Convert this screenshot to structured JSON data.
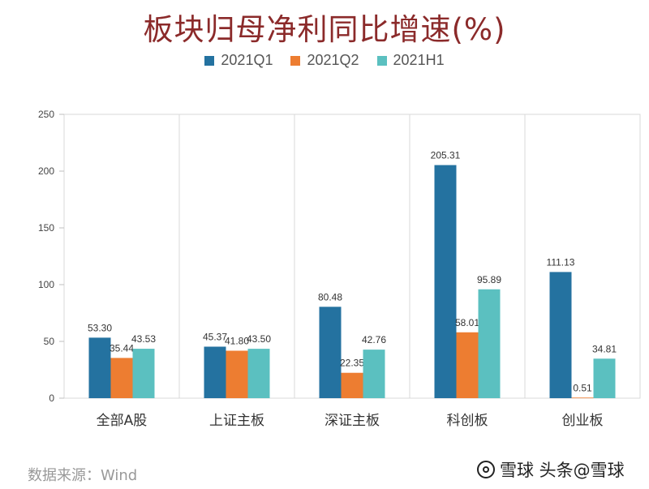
{
  "chart_data": {
    "type": "bar",
    "title": "板块归母净利同比增速(%)",
    "categories": [
      "全部A股",
      "上证主板",
      "深证主板",
      "科创板",
      "创业板"
    ],
    "series": [
      {
        "name": "2021Q1",
        "color": "#2472a0",
        "values": [
          53.3,
          45.37,
          80.48,
          205.31,
          111.13
        ],
        "labels": [
          "53.30",
          "45.37",
          "80.48",
          "205.31",
          "111.13"
        ]
      },
      {
        "name": "2021Q2",
        "color": "#ed7d31",
        "values": [
          35.44,
          41.8,
          22.35,
          58.01,
          0.51
        ],
        "labels": [
          "35.44",
          "41.80",
          "22.35",
          "58.01",
          "0.51"
        ]
      },
      {
        "name": "2021H1",
        "color": "#5bc0c0",
        "values": [
          43.53,
          43.5,
          42.76,
          95.89,
          34.81
        ],
        "labels": [
          "43.53",
          "43.50",
          "42.76",
          "95.89",
          "34.81"
        ]
      }
    ],
    "ylim": [
      0,
      250
    ],
    "yticks": [
      0,
      50,
      100,
      150,
      200,
      250
    ],
    "legend": "top-center",
    "grid": "vertical category dividers"
  },
  "footer": {
    "source": "数据来源：Wind",
    "watermark": "雪球  头条@雪球"
  }
}
